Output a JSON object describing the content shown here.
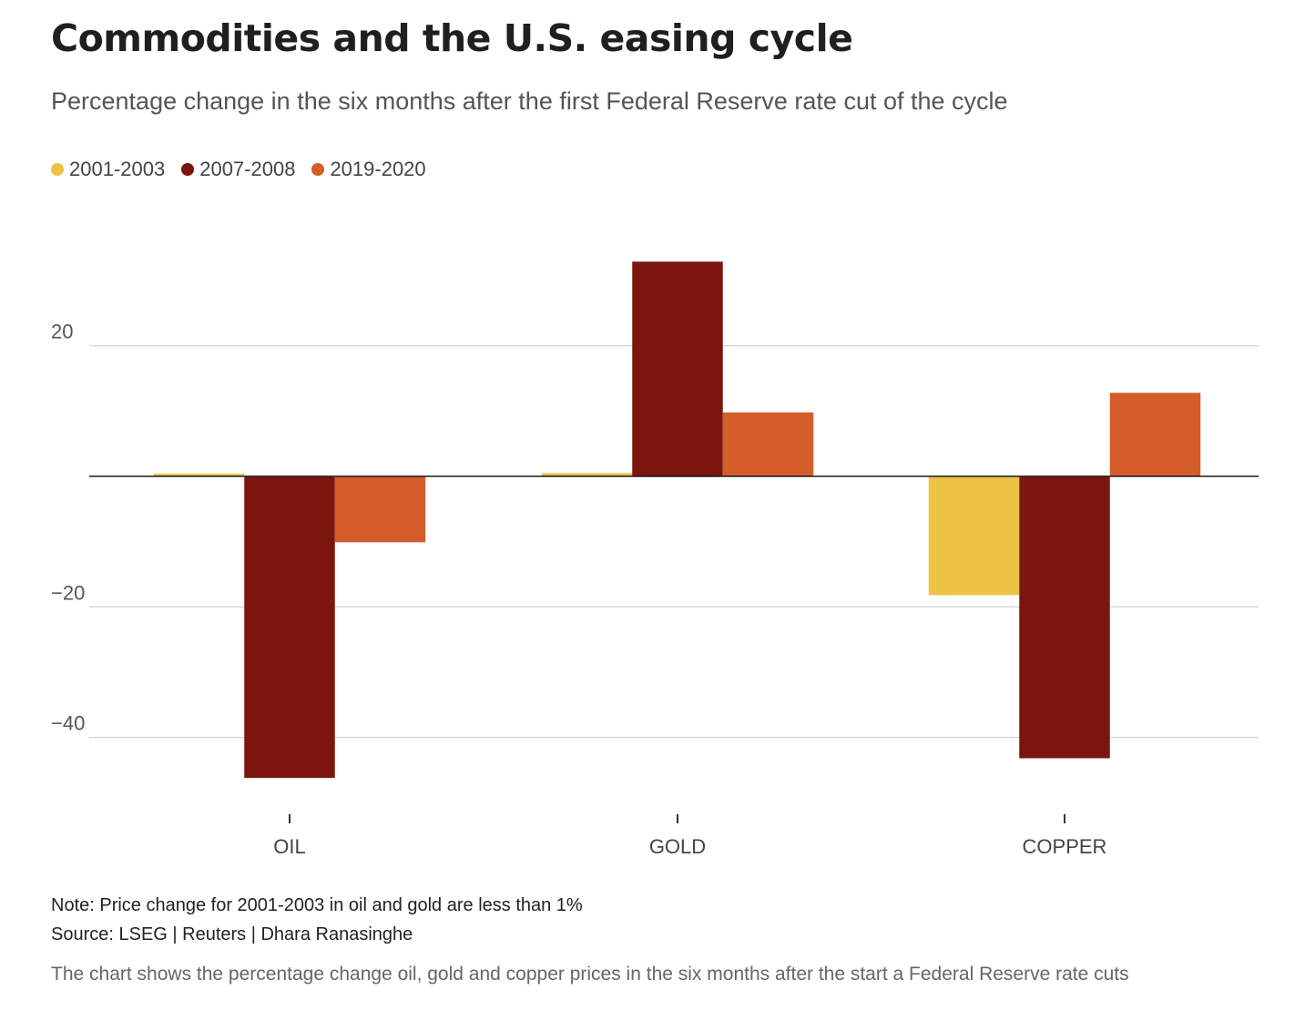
{
  "header": {
    "title": "Commodities and the U.S. easing cycle",
    "subtitle": "Percentage change in the six months after the first Federal Reserve rate cut of the cycle"
  },
  "footer": {
    "note": "Note: Price change for 2001-2003 in oil and gold are less than 1%",
    "source": "Source: LSEG | Reuters | Dhara Ranasinghe",
    "description": "The chart shows the percentage change oil, gold and copper prices in the six months after the start a Federal Reserve rate cuts"
  },
  "chart_data": {
    "type": "bar",
    "title": "Commodities and the U.S. easing cycle",
    "subtitle": "Percentage change in the six months after the first Federal Reserve rate cut of the cycle",
    "xlabel": "",
    "ylabel": "",
    "categories": [
      "OIL",
      "GOLD",
      "COPPER"
    ],
    "series": [
      {
        "name": "2001-2003",
        "color": "#ecc345",
        "values": [
          0.4,
          0.5,
          -18.2
        ]
      },
      {
        "name": "2007-2008",
        "color": "#7b150d",
        "values": [
          -46.2,
          32.9,
          -43.2
        ]
      },
      {
        "name": "2019-2020",
        "color": "#d45d29",
        "values": [
          -10.1,
          9.8,
          12.8
        ]
      }
    ],
    "y_ticks": [
      20,
      -20,
      -40
    ],
    "y_tick_labels": [
      "20",
      "−20",
      "−40"
    ],
    "ylim": [
      -52,
      37
    ],
    "grid": true,
    "legend_position": "top-left"
  }
}
